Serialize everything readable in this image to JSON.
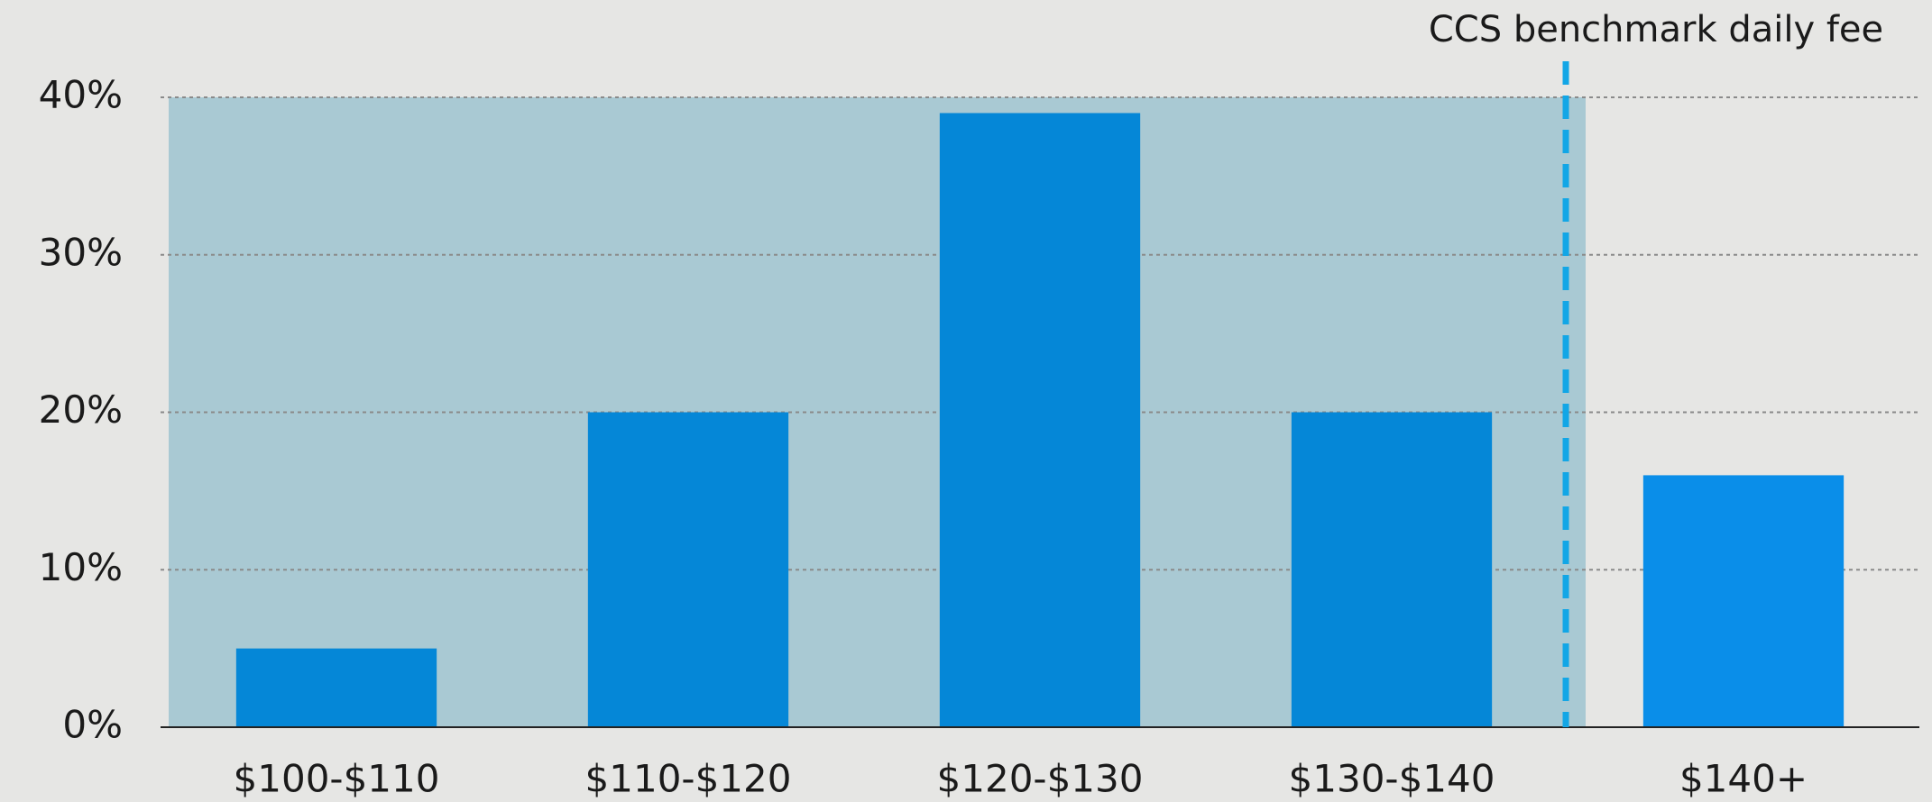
{
  "chart_data": {
    "type": "bar",
    "annotation": "CCS benchmark daily fee",
    "categories": [
      "$100-$110",
      "$110-$120",
      "$120-$130",
      "$130-$140",
      "$140+"
    ],
    "values": [
      5,
      20,
      39,
      20,
      16
    ],
    "colors": [
      "#0587d7",
      "#0587d7",
      "#0587d7",
      "#0587d7",
      "#0a8ee9"
    ],
    "ylim": [
      0,
      40
    ],
    "yticks": [
      {
        "value": 0,
        "label": "0%"
      },
      {
        "value": 10,
        "label": "10%"
      },
      {
        "value": 20,
        "label": "20%"
      },
      {
        "value": 30,
        "label": "30%"
      },
      {
        "value": 40,
        "label": "40%"
      }
    ],
    "grid": true
  }
}
